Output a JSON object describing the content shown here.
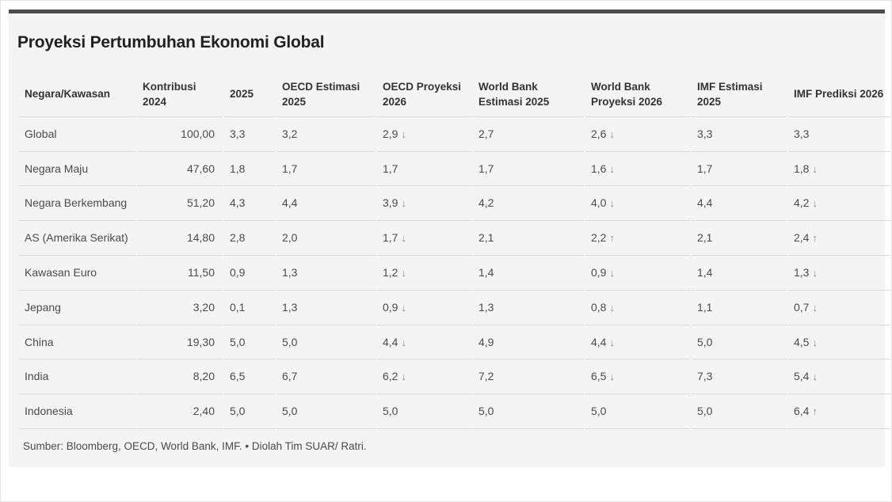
{
  "title": "Proyeksi Pertumbuhan Ekonomi Global",
  "source_note": "Sumber: Bloomberg, OECD, World Bank, IMF. • Diolah Tim SUAR/ Ratri.",
  "colors": {
    "accent_bar": "#4e4e4e",
    "panel_background": "#f4f4f4",
    "row_border": "#d9d9d9",
    "title_text": "#212121",
    "header_text": "#333333",
    "cell_text": "#4a4a4a",
    "arrow": "#8a8a8a"
  },
  "icons": {
    "down_arrow": "↓",
    "up_arrow": "↑"
  },
  "chart_data": {
    "type": "table",
    "title": "Proyeksi Pertumbuhan Ekonomi Global",
    "columns": [
      {
        "label": "Negara/Kawasan",
        "align": "left"
      },
      {
        "label": "Kontribusi 2024",
        "align": "right"
      },
      {
        "label": "2025",
        "align": "left"
      },
      {
        "label": "OECD Estimasi 2025",
        "align": "left"
      },
      {
        "label": "OECD Proyeksi 2026",
        "align": "left"
      },
      {
        "label": "World Bank Estimasi 2025",
        "align": "left"
      },
      {
        "label": "World Bank Proyeksi 2026",
        "align": "left"
      },
      {
        "label": "IMF Estimasi 2025",
        "align": "left"
      },
      {
        "label": "IMF Prediksi 2026",
        "align": "left"
      }
    ],
    "rows": [
      {
        "name": "Global",
        "cells": [
          {
            "v": "100,00"
          },
          {
            "v": "3,3"
          },
          {
            "v": "3,2"
          },
          {
            "v": "2,9",
            "arrow": "down"
          },
          {
            "v": "2,7"
          },
          {
            "v": "2,6",
            "arrow": "down"
          },
          {
            "v": "3,3"
          },
          {
            "v": "3,3"
          }
        ]
      },
      {
        "name": "Negara Maju",
        "cells": [
          {
            "v": "47,60"
          },
          {
            "v": "1,8"
          },
          {
            "v": "1,7"
          },
          {
            "v": "1,7"
          },
          {
            "v": "1,7"
          },
          {
            "v": "1,6",
            "arrow": "down"
          },
          {
            "v": "1,7"
          },
          {
            "v": "1,8",
            "arrow": "down"
          }
        ]
      },
      {
        "name": "Negara Berkembang",
        "cells": [
          {
            "v": "51,20"
          },
          {
            "v": "4,3"
          },
          {
            "v": "4,4"
          },
          {
            "v": "3,9",
            "arrow": "down"
          },
          {
            "v": "4,2"
          },
          {
            "v": "4,0",
            "arrow": "down"
          },
          {
            "v": "4,4"
          },
          {
            "v": "4,2",
            "arrow": "down"
          }
        ]
      },
      {
        "name": "AS (Amerika Serikat)",
        "cells": [
          {
            "v": "14,80"
          },
          {
            "v": "2,8"
          },
          {
            "v": "2,0"
          },
          {
            "v": "1,7",
            "arrow": "down"
          },
          {
            "v": "2,1"
          },
          {
            "v": "2,2",
            "arrow": "up"
          },
          {
            "v": "2,1"
          },
          {
            "v": "2,4",
            "arrow": "up"
          }
        ]
      },
      {
        "name": "Kawasan Euro",
        "cells": [
          {
            "v": "11,50"
          },
          {
            "v": "0,9"
          },
          {
            "v": "1,3"
          },
          {
            "v": "1,2",
            "arrow": "down"
          },
          {
            "v": "1,4"
          },
          {
            "v": "0,9",
            "arrow": "down"
          },
          {
            "v": "1,4"
          },
          {
            "v": "1,3",
            "arrow": "down"
          }
        ]
      },
      {
        "name": "Jepang",
        "cells": [
          {
            "v": "3,20"
          },
          {
            "v": "0,1"
          },
          {
            "v": "1,3"
          },
          {
            "v": "0,9",
            "arrow": "down"
          },
          {
            "v": "1,3"
          },
          {
            "v": "0,8",
            "arrow": "down"
          },
          {
            "v": "1,1"
          },
          {
            "v": "0,7",
            "arrow": "down"
          }
        ]
      },
      {
        "name": "China",
        "cells": [
          {
            "v": "19,30"
          },
          {
            "v": "5,0"
          },
          {
            "v": "5,0"
          },
          {
            "v": "4,4",
            "arrow": "down"
          },
          {
            "v": "4,9"
          },
          {
            "v": "4,4",
            "arrow": "down"
          },
          {
            "v": "5,0"
          },
          {
            "v": "4,5",
            "arrow": "down"
          }
        ]
      },
      {
        "name": "India",
        "cells": [
          {
            "v": "8,20"
          },
          {
            "v": "6,5"
          },
          {
            "v": "6,7"
          },
          {
            "v": "6,2",
            "arrow": "down"
          },
          {
            "v": "7,2"
          },
          {
            "v": "6,5",
            "arrow": "down"
          },
          {
            "v": "7,3"
          },
          {
            "v": "5,4",
            "arrow": "down"
          }
        ]
      },
      {
        "name": "Indonesia",
        "cells": [
          {
            "v": "2,40"
          },
          {
            "v": "5,0"
          },
          {
            "v": "5,0"
          },
          {
            "v": "5,0"
          },
          {
            "v": "5,0"
          },
          {
            "v": "5,0"
          },
          {
            "v": "5,0"
          },
          {
            "v": "6,4",
            "arrow": "up"
          }
        ]
      }
    ]
  }
}
